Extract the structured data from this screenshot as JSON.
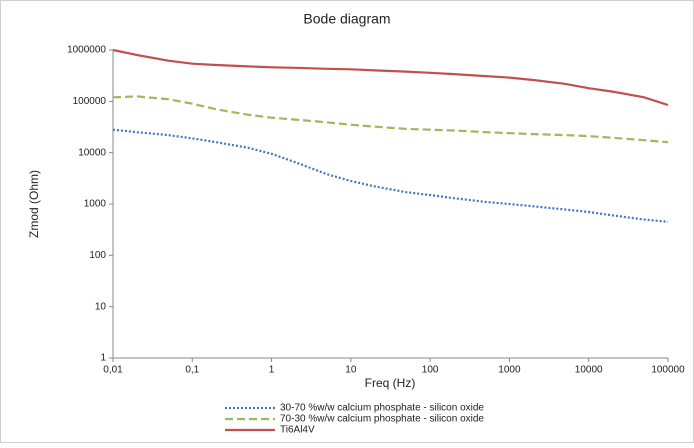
{
  "chart_data": {
    "type": "line",
    "title": "Bode diagram",
    "x_label": "Freq (Hz)",
    "y_label": "Zmod (Ohm)",
    "log_x": true,
    "log_y": true,
    "grid": false,
    "legend": "bottom",
    "x": [
      0.01,
      0.02,
      0.05,
      0.1,
      0.2,
      0.5,
      1,
      2,
      5,
      10,
      20,
      50,
      100,
      200,
      500,
      1000,
      2000,
      5000,
      10000,
      20000,
      50000,
      100000
    ],
    "xlim": [
      0.01,
      100000
    ],
    "xticks": [
      {
        "value": 0.01,
        "label": "0,01"
      },
      {
        "value": 0.1,
        "label": "0,1"
      },
      1,
      10,
      100,
      1000,
      10000,
      100000
    ],
    "ylim": [
      1,
      1000000
    ],
    "yticks": [
      1,
      10,
      100,
      1000,
      10000,
      100000,
      1000000
    ],
    "series": [
      {
        "name": "30-70 %w/w calcium phosphate - silicon oxide",
        "color": "#4472c4",
        "dash": "2,2",
        "values": [
          28000,
          25000,
          22000,
          19000,
          16000,
          12500,
          9500,
          6500,
          3800,
          2800,
          2200,
          1700,
          1500,
          1300,
          1100,
          1000,
          900,
          780,
          700,
          600,
          500,
          450
        ]
      },
      {
        "name": "70-30 %w/w calcium phosphate - silicon oxide",
        "color": "#9bbb59",
        "dash": "8,4",
        "values": [
          120000,
          125000,
          110000,
          90000,
          70000,
          55000,
          48000,
          44000,
          39000,
          35000,
          32000,
          29000,
          28000,
          27000,
          25000,
          24000,
          23000,
          22000,
          21000,
          19500,
          17500,
          16000
        ]
      },
      {
        "name": "Ti6Al4V",
        "color": "#c0504d",
        "dash": "none",
        "values": [
          1000000,
          800000,
          620000,
          540000,
          510000,
          480000,
          460000,
          450000,
          430000,
          420000,
          400000,
          380000,
          360000,
          340000,
          310000,
          290000,
          260000,
          220000,
          180000,
          155000,
          120000,
          85000
        ]
      }
    ]
  }
}
